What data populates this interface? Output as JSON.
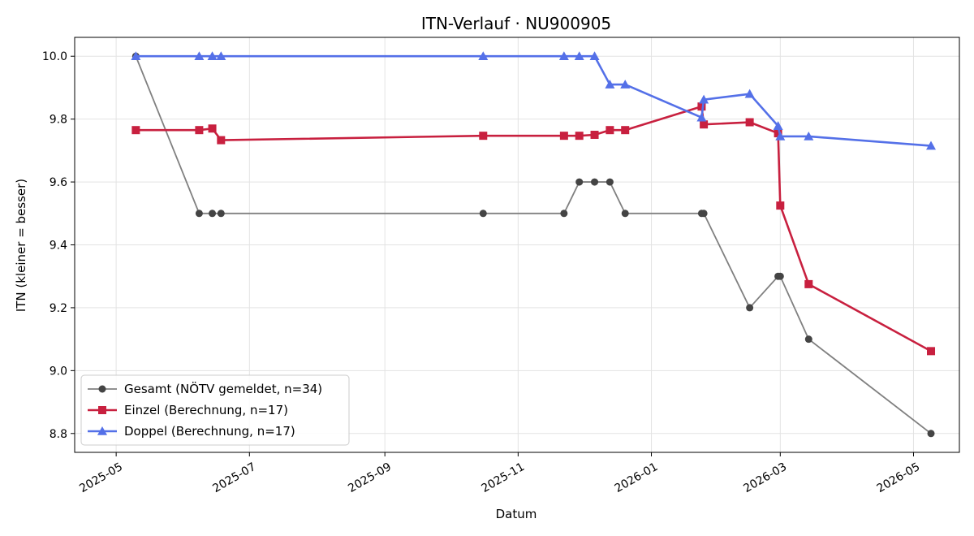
{
  "chart_data": {
    "type": "line",
    "title": "ITN-Verlauf · NU900905",
    "xlabel": "Datum",
    "ylabel": "ITN  (kleiner = besser)",
    "xlim": [
      "2025-04-12",
      "2026-05-22"
    ],
    "ylim": [
      8.74,
      10.06
    ],
    "x_ticks": [
      "2025-05-01",
      "2025-07-01",
      "2025-09-01",
      "2025-11-01",
      "2026-01-01",
      "2026-03-01",
      "2026-05-01"
    ],
    "x_tick_labels": [
      "2025-05",
      "2025-07",
      "2025-09",
      "2025-11",
      "2026-01",
      "2026-03",
      "2026-05"
    ],
    "y_ticks": [
      8.8,
      9.0,
      9.2,
      9.4,
      9.6,
      9.8,
      10.0
    ],
    "y_tick_labels": [
      "8.8",
      "9.0",
      "9.2",
      "9.4",
      "9.6",
      "9.8",
      "10.0"
    ],
    "grid": true,
    "legend_position": "lower-left",
    "series": [
      {
        "name": "Gesamt (NÖTV gemeldet, n=34)",
        "color": "#444444",
        "line_color": "#808080",
        "marker": "circle",
        "points": [
          [
            "2025-05-10",
            10.0
          ],
          [
            "2025-06-08",
            9.5
          ],
          [
            "2025-06-14",
            9.5
          ],
          [
            "2025-06-18",
            9.5
          ],
          [
            "2025-10-16",
            9.5
          ],
          [
            "2025-11-22",
            9.5
          ],
          [
            "2025-11-29",
            9.6
          ],
          [
            "2025-12-06",
            9.6
          ],
          [
            "2025-12-13",
            9.6
          ],
          [
            "2025-12-20",
            9.5
          ],
          [
            "2026-01-24",
            9.5
          ],
          [
            "2026-01-25",
            9.5
          ],
          [
            "2026-02-15",
            9.2
          ],
          [
            "2026-02-28",
            9.3
          ],
          [
            "2026-03-01",
            9.3
          ],
          [
            "2026-03-14",
            9.1
          ],
          [
            "2026-05-09",
            8.8
          ]
        ]
      },
      {
        "name": "Einzel (Berechnung, n=17)",
        "color": "#c8203f",
        "line_color": "#c8203f",
        "marker": "square",
        "points": [
          [
            "2025-05-10",
            9.765
          ],
          [
            "2025-06-08",
            9.765
          ],
          [
            "2025-06-14",
            9.77
          ],
          [
            "2025-06-18",
            9.733
          ],
          [
            "2025-10-16",
            9.747
          ],
          [
            "2025-11-22",
            9.747
          ],
          [
            "2025-11-29",
            9.747
          ],
          [
            "2025-12-06",
            9.75
          ],
          [
            "2025-12-13",
            9.765
          ],
          [
            "2025-12-20",
            9.765
          ],
          [
            "2026-01-24",
            9.84
          ],
          [
            "2026-01-25",
            9.783
          ],
          [
            "2026-02-15",
            9.79
          ],
          [
            "2026-02-28",
            9.755
          ],
          [
            "2026-03-01",
            9.525
          ],
          [
            "2026-03-14",
            9.275
          ],
          [
            "2026-05-09",
            9.062
          ]
        ]
      },
      {
        "name": "Doppel (Berechnung, n=17)",
        "color": "#5470e8",
        "line_color": "#5470e8",
        "marker": "triangle",
        "points": [
          [
            "2025-05-10",
            10.0
          ],
          [
            "2025-06-08",
            10.0
          ],
          [
            "2025-06-14",
            10.0
          ],
          [
            "2025-06-18",
            10.0
          ],
          [
            "2025-10-16",
            10.0
          ],
          [
            "2025-11-22",
            10.0
          ],
          [
            "2025-11-29",
            10.0
          ],
          [
            "2025-12-06",
            10.0
          ],
          [
            "2025-12-13",
            9.91
          ],
          [
            "2025-12-20",
            9.91
          ],
          [
            "2026-01-24",
            9.805
          ],
          [
            "2026-01-25",
            9.862
          ],
          [
            "2026-02-15",
            9.88
          ],
          [
            "2026-02-28",
            9.778
          ],
          [
            "2026-03-01",
            9.745
          ],
          [
            "2026-03-14",
            9.745
          ],
          [
            "2026-05-09",
            9.715
          ]
        ]
      }
    ]
  }
}
